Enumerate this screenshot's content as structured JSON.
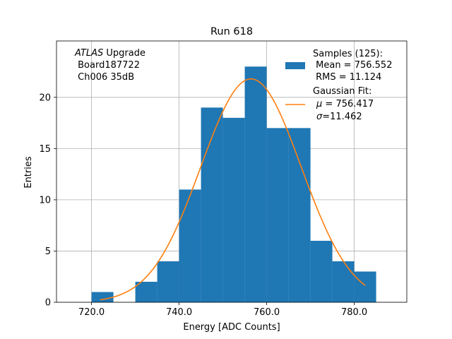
{
  "chart_data": {
    "type": "bar",
    "title": "Run 618",
    "xlabel": "Energy [ADC Counts]",
    "ylabel": "Entries",
    "xlim": [
      712,
      792
    ],
    "ylim": [
      0,
      25.5
    ],
    "grid": true,
    "x_ticks": [
      720,
      740,
      760,
      780
    ],
    "x_tick_labels": [
      "720.0",
      "740.0",
      "760.0",
      "780.0"
    ],
    "y_ticks": [
      0,
      5,
      10,
      15,
      20
    ],
    "y_tick_labels": [
      "0",
      "5",
      "10",
      "15",
      "20"
    ],
    "histogram": {
      "bin_edges": [
        720,
        725,
        730,
        735,
        740,
        745,
        750,
        755,
        760,
        765,
        770,
        775,
        780,
        785
      ],
      "counts": [
        1,
        0,
        2,
        4,
        11,
        19,
        18,
        23,
        17,
        17,
        6,
        4,
        3
      ],
      "color": "#1f77b4"
    },
    "fit": {
      "amplitude": 21.8,
      "mu": 756.417,
      "sigma": 11.462,
      "x_range": [
        722,
        782.5
      ],
      "color": "#ff7f0e"
    },
    "annotation": {
      "italic": "ATLAS",
      "line1_rest": " Upgrade",
      "line2": " Board187722",
      "line3": " Ch006 35dB"
    },
    "legend": {
      "placement": "top-right",
      "hist_lines": [
        "Samples (125):",
        " Mean = 756.552",
        " RMS = 11.124"
      ],
      "fit_title": "Gaussian Fit:",
      "fit_mu_symbol": "μ",
      "fit_mu_rest": " = 756.417",
      "fit_sigma_symbol": "σ",
      "fit_sigma_rest": "=11.462"
    }
  }
}
